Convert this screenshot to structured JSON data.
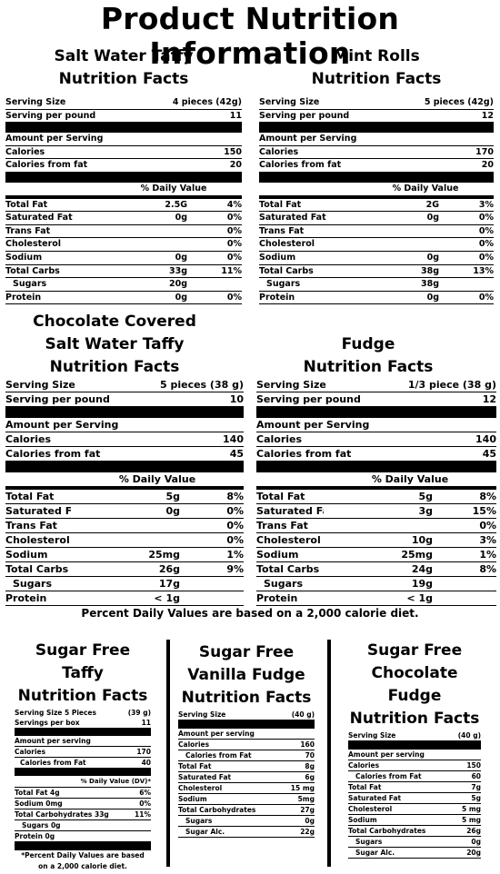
{
  "page_title": "Product Nutrition Information",
  "panels": [
    {
      "name_lines": [
        "Salt Water Taffy",
        "Nutrition Facts"
      ],
      "serving_size_label": "Serving Size",
      "serving_size": "4 pieces (42g)",
      "per_pound_label": "Serving per pound",
      "per_pound": "11",
      "amount_label": "Amount per Serving",
      "calories_label": "Calories",
      "calories": "150",
      "cff_label": "Calories from fat",
      "cff": "20",
      "dv_header": "% Daily Value",
      "nutrients": [
        {
          "label": "Total Fat",
          "amount": "2.5G",
          "dv": "4%"
        },
        {
          "label": "Saturated Fat",
          "amount": "0g",
          "dv": "0%"
        },
        {
          "label": "Trans Fat",
          "amount": "",
          "dv": "0%"
        },
        {
          "label": "Cholesterol",
          "amount": "",
          "dv": "0%"
        },
        {
          "label": "Sodium",
          "amount": "0g",
          "dv": "0%"
        },
        {
          "label": "Total Carbs",
          "amount": "33g",
          "dv": "11%"
        },
        {
          "label": "Sugars",
          "amount": "20g",
          "dv": ""
        },
        {
          "label": "Protein",
          "amount": "0g",
          "dv": "0%"
        }
      ]
    },
    {
      "name_lines": [
        "Mint Rolls",
        "Nutrition Facts"
      ],
      "serving_size_label": "Serving Size",
      "serving_size": "5 pieces (42g)",
      "per_pound_label": "Serving per pound",
      "per_pound": "12",
      "amount_label": "Amount per Serving",
      "calories_label": "Calories",
      "calories": "170",
      "cff_label": "Calories from fat",
      "cff": "20",
      "dv_header": "% Daily Value",
      "nutrients": [
        {
          "label": "Total Fat",
          "amount": "2G",
          "dv": "3%"
        },
        {
          "label": "Saturated Fat",
          "amount": "0g",
          "dv": "0%"
        },
        {
          "label": "Trans Fat",
          "amount": "",
          "dv": "0%"
        },
        {
          "label": "Cholesterol",
          "amount": "",
          "dv": "0%"
        },
        {
          "label": "Sodium",
          "amount": "0g",
          "dv": "0%"
        },
        {
          "label": "Total Carbs",
          "amount": "38g",
          "dv": "13%"
        },
        {
          "label": "Sugars",
          "amount": "38g",
          "dv": ""
        },
        {
          "label": "Protein",
          "amount": "0g",
          "dv": "0%"
        }
      ]
    },
    {
      "name_lines": [
        "Chocolate Covered",
        "Salt Water Taffy",
        "Nutrition Facts"
      ],
      "serving_size_label": "Serving Size",
      "serving_size": "5 pieces (38 g)",
      "per_pound_label": "Serving per pound",
      "per_pound": "10",
      "amount_label": "Amount per Serving",
      "calories_label": "Calories",
      "calories": "140",
      "cff_label": "Calories from fat",
      "cff": "45",
      "dv_header": "% Daily Value",
      "nutrients": [
        {
          "label": "Total Fat",
          "amount": "5g",
          "dv": "8%"
        },
        {
          "label": "Saturated Fat",
          "amount": "0g",
          "dv": "0%"
        },
        {
          "label": "Trans Fat",
          "amount": "",
          "dv": "0%"
        },
        {
          "label": "Cholesterol",
          "amount": "",
          "dv": "0%"
        },
        {
          "label": "Sodium",
          "amount": "25mg",
          "dv": "1%"
        },
        {
          "label": "Total Carbs",
          "amount": "26g",
          "dv": "9%"
        },
        {
          "label": "Sugars",
          "amount": "17g",
          "dv": ""
        },
        {
          "label": "Protein",
          "amount": "< 1g",
          "dv": ""
        }
      ]
    },
    {
      "name_lines": [
        "Fudge",
        "Nutrition Facts"
      ],
      "serving_size_label": "Serving Size",
      "serving_size": "1/3 piece (38 g)",
      "per_pound_label": "Serving per pound",
      "per_pound": "12",
      "amount_label": "Amount per Serving",
      "calories_label": "Calories",
      "calories": "140",
      "cff_label": "Calories from fat",
      "cff": "45",
      "dv_header": "% Daily Value",
      "nutrients": [
        {
          "label": "Total Fat",
          "amount": "5g",
          "dv": "8%"
        },
        {
          "label": "Saturated Fat",
          "amount": "3g",
          "dv": "15%"
        },
        {
          "label": "Trans Fat",
          "amount": "",
          "dv": "0%"
        },
        {
          "label": "Cholesterol",
          "amount": "10g",
          "dv": "3%"
        },
        {
          "label": "Sodium",
          "amount": "25mg",
          "dv": "1%"
        },
        {
          "label": "Total Carbs",
          "amount": "24g",
          "dv": "8%"
        },
        {
          "label": "Sugars",
          "amount": "19g",
          "dv": ""
        },
        {
          "label": "Protein",
          "amount": "< 1g",
          "dv": ""
        }
      ]
    }
  ],
  "footnote": "Percent Daily Values are based on a 2,000 calorie diet.",
  "sugar_free_taffy": {
    "name_lines": [
      "Sugar Free Taffy",
      "Nutrition Facts"
    ],
    "serving_size_label": "Serving Size 5 Pieces",
    "serving_size": "(39 g)",
    "per_box_label": "Servings per box",
    "per_box": "11",
    "amount_label": "Amount per serving",
    "calories_label": "Calories",
    "calories": "170",
    "cff_label": "Calories from Fat",
    "cff": "40",
    "dv_header": "% Daily Value (DV)*",
    "rows": [
      {
        "label": "Total Fat 4g",
        "dv": "6%"
      },
      {
        "label": "Sodium 0mg",
        "dv": "0%"
      },
      {
        "label": "Total Carbohydrates  33g",
        "dv": "11%"
      },
      {
        "label": "Sugars  0g",
        "dv": ""
      },
      {
        "label": "Protein  0g",
        "dv": ""
      }
    ],
    "note_lines": [
      "*Percent Daily Values are based",
      "on a 2,000 calorie diet."
    ]
  },
  "sugar_free_vanilla": {
    "name_lines": [
      "Sugar Free",
      "Vanilla Fudge",
      "Nutrition Facts"
    ],
    "serving_size_label": "Serving Size",
    "serving_size": "(40 g)",
    "amount_label": "Amount per serving",
    "rows": [
      {
        "label": "Calories",
        "value": "160",
        "indent": false
      },
      {
        "label": "Calories from Fat",
        "value": "70",
        "indent": true
      },
      {
        "label": "Total Fat",
        "value": "8g",
        "indent": false
      },
      {
        "label": "Saturated Fat",
        "value": "6g",
        "indent": false
      },
      {
        "label": "Cholesterol",
        "value": "15 mg",
        "indent": false
      },
      {
        "label": "Sodium",
        "value": "5mg",
        "indent": false
      },
      {
        "label": "Total Carbohydrates",
        "value": "27g",
        "indent": false
      },
      {
        "label": "Sugars",
        "value": "0g",
        "indent": true
      },
      {
        "label": "Sugar Alc.",
        "value": "22g",
        "indent": true
      }
    ]
  },
  "sugar_free_chocolate": {
    "name_lines": [
      "Sugar Free",
      "Chocolate Fudge",
      "Nutrition Facts"
    ],
    "serving_size_label": "Serving Size",
    "serving_size": "(40 g)",
    "amount_label": "Amount per serving",
    "rows": [
      {
        "label": "Calories",
        "value": "150",
        "indent": false
      },
      {
        "label": "Calories from Fat",
        "value": "60",
        "indent": true
      },
      {
        "label": "Total Fat",
        "value": "7g",
        "indent": false
      },
      {
        "label": "Saturated Fat",
        "value": "5g",
        "indent": false
      },
      {
        "label": "Cholesterol",
        "value": "5 mg",
        "indent": false
      },
      {
        "label": "Sodium",
        "value": "5 mg",
        "indent": false
      },
      {
        "label": "Total Carbohydrates",
        "value": "26g",
        "indent": false
      },
      {
        "label": "Sugars",
        "value": "0g",
        "indent": true
      },
      {
        "label": "Sugar Alc.",
        "value": "20g",
        "indent": true
      }
    ]
  }
}
